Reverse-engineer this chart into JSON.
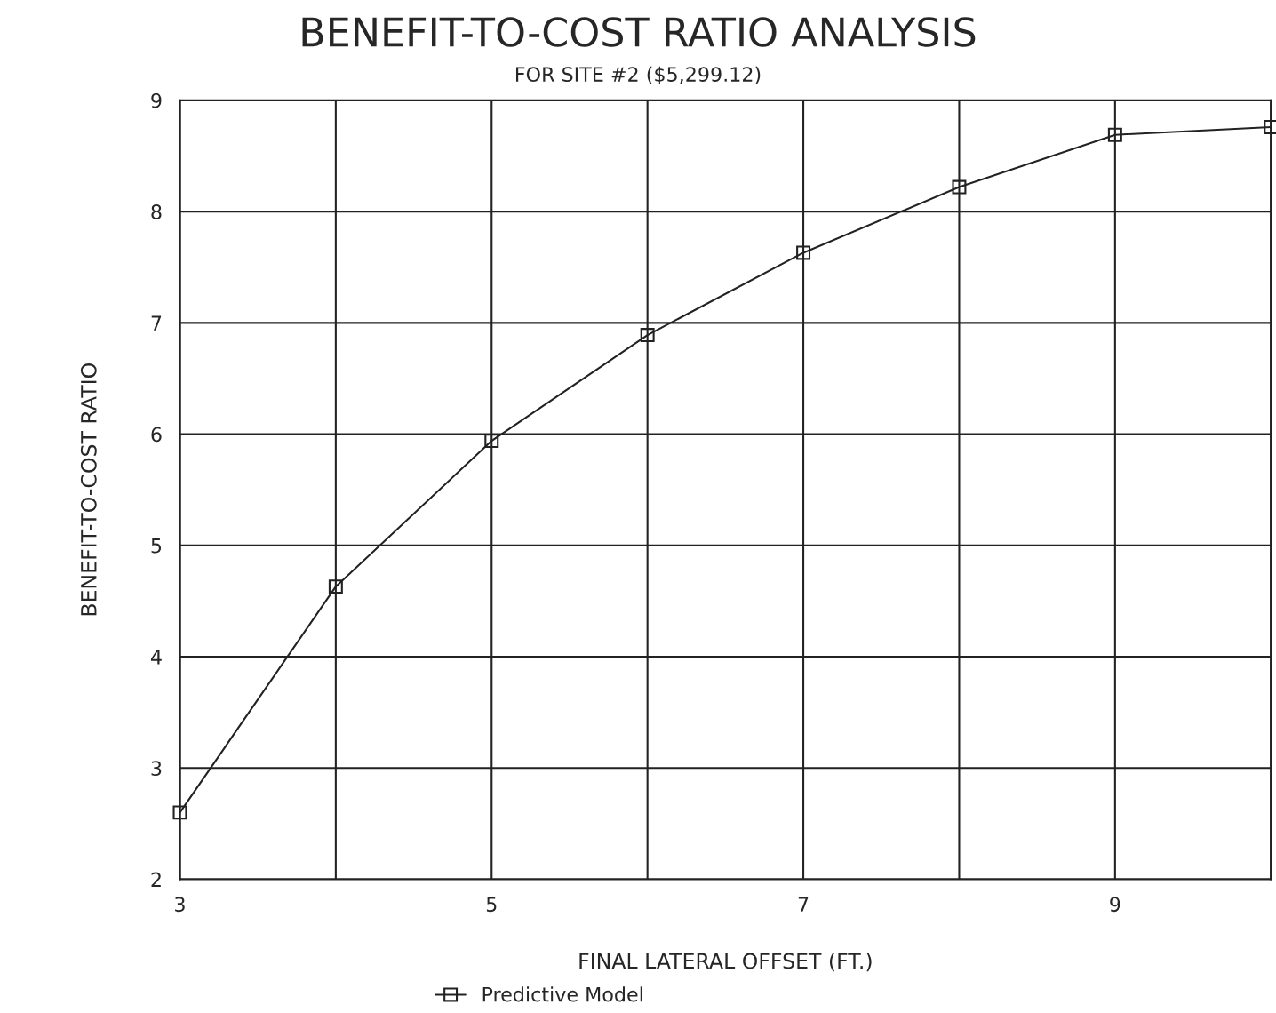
{
  "chart_data": {
    "type": "line",
    "title": "BENEFIT-TO-COST RATIO ANALYSIS",
    "subtitle": "FOR SITE #2 ($5,299.12)",
    "xlabel": "FINAL LATERAL OFFSET (FT.)",
    "ylabel": "BENEFIT-TO-COST RATIO",
    "x": [
      3,
      4,
      5,
      6,
      7,
      8,
      9,
      10
    ],
    "series": [
      {
        "name": "Predictive Model",
        "color": "#222222",
        "values": [
          2.6,
          4.63,
          5.94,
          6.89,
          7.63,
          8.22,
          8.69,
          8.76
        ]
      }
    ],
    "xlim": [
      3,
      10
    ],
    "xticks": [
      3,
      {
        "value": 4,
        "label": null
      },
      5,
      {
        "value": 6,
        "label": null
      },
      7,
      {
        "value": 8,
        "label": null
      },
      9,
      {
        "value": 10,
        "label": null
      }
    ],
    "ylim": [
      2,
      9
    ],
    "yticks": [
      2,
      3,
      4,
      5,
      6,
      7,
      8,
      9
    ],
    "grid": true,
    "legend": "bottom",
    "marker": "square",
    "line_style": "solid"
  }
}
